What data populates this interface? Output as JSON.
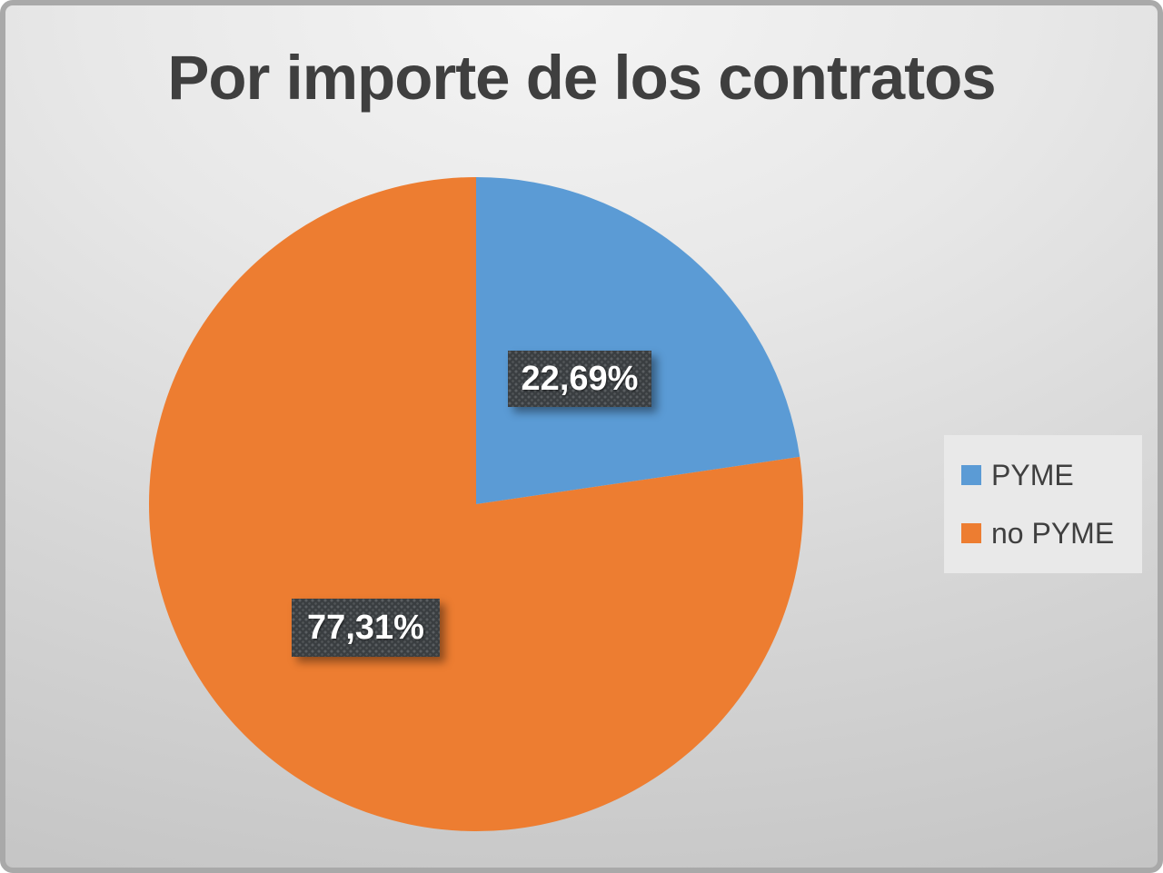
{
  "chart_data": {
    "type": "pie",
    "title": "Por importe de los contratos",
    "slices": [
      {
        "label": "PYME",
        "value": 22.69,
        "display": "22,69%",
        "color": "#5B9BD5"
      },
      {
        "label": "no PYME",
        "value": 77.31,
        "display": "77,31%",
        "color": "#ED7D31"
      }
    ],
    "start_angle_deg": 0,
    "direction": "clockwise",
    "legend_position": "right",
    "data_label_box_color": "#3A3E41",
    "data_label_text_color": "#FFFFFF"
  },
  "style": {
    "title_color": "#3F3F3F",
    "slide_border_color": "#A9A9A9",
    "background_light": "#F4F4F4",
    "background_dark": "#C2C2C2",
    "legend_background": "#E9E9E9"
  }
}
